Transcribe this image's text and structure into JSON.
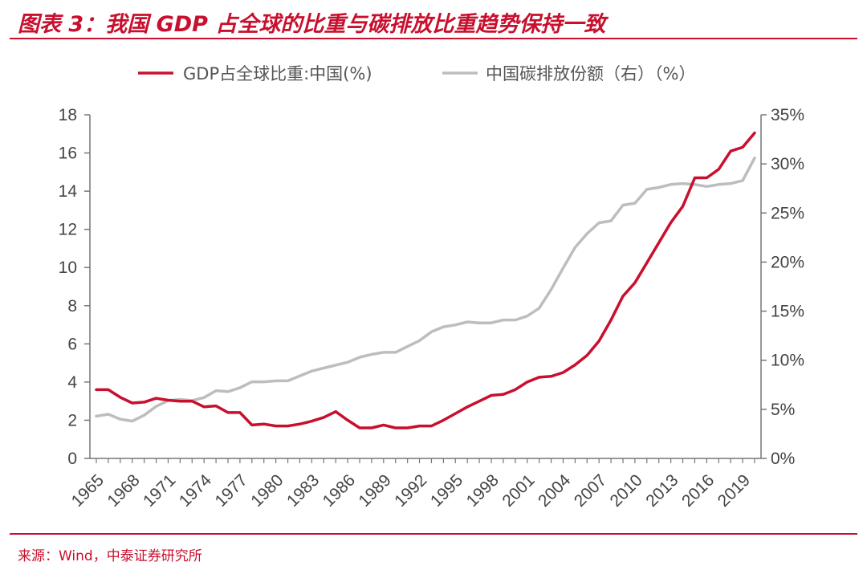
{
  "title": "图表 3：我国 GDP 占全球的比重与碳排放比重趋势保持一致",
  "source": "来源：Wind，中泰证券研究所",
  "colors": {
    "accent": "#C8102E",
    "gdp_line": "#C8102E",
    "carbon_line": "#BDBDBD"
  },
  "chart_data": {
    "type": "line",
    "legend_position": "top",
    "grid": false,
    "x": [
      1965,
      1966,
      1967,
      1968,
      1969,
      1970,
      1971,
      1972,
      1973,
      1974,
      1975,
      1976,
      1977,
      1978,
      1979,
      1980,
      1981,
      1982,
      1983,
      1984,
      1985,
      1986,
      1987,
      1988,
      1989,
      1990,
      1991,
      1992,
      1993,
      1994,
      1995,
      1996,
      1997,
      1998,
      1999,
      2000,
      2001,
      2002,
      2003,
      2004,
      2005,
      2006,
      2007,
      2008,
      2009,
      2010,
      2011,
      2012,
      2013,
      2014,
      2015,
      2016,
      2017,
      2018,
      2019,
      2020
    ],
    "x_tick_labels": [
      "1965",
      "1968",
      "1971",
      "1974",
      "1977",
      "1980",
      "1983",
      "1986",
      "1989",
      "1992",
      "1995",
      "1998",
      "2001",
      "2004",
      "2007",
      "2010",
      "2013",
      "2016",
      "2019"
    ],
    "y_left": {
      "range": [
        0,
        18
      ],
      "ticks": [
        "0",
        "2",
        "4",
        "6",
        "8",
        "10",
        "12",
        "14",
        "16",
        "18"
      ]
    },
    "y_right": {
      "range": [
        0,
        35
      ],
      "ticks": [
        "0%",
        "5%",
        "10%",
        "15%",
        "20%",
        "25%",
        "30%",
        "35%"
      ]
    },
    "series": [
      {
        "name": "GDP占全球比重:中国(%)",
        "axis": "left",
        "values": [
          3.6,
          3.6,
          3.2,
          2.9,
          2.95,
          3.15,
          3.05,
          3.0,
          3.0,
          2.7,
          2.75,
          2.4,
          2.4,
          1.75,
          1.8,
          1.7,
          1.7,
          1.8,
          1.95,
          2.15,
          2.45,
          2.0,
          1.6,
          1.6,
          1.75,
          1.6,
          1.6,
          1.7,
          1.7,
          2.0,
          2.35,
          2.7,
          3.0,
          3.3,
          3.35,
          3.6,
          4.0,
          4.25,
          4.3,
          4.5,
          4.9,
          5.4,
          6.15,
          7.25,
          8.5,
          9.2,
          10.25,
          11.3,
          12.35,
          13.2,
          14.7,
          14.7,
          15.15,
          16.1,
          16.3,
          17.05
        ]
      },
      {
        "name": "中国碳排放份额（右）（%）",
        "axis": "right",
        "values": [
          4.3,
          4.5,
          4.0,
          3.8,
          4.4,
          5.3,
          5.9,
          6.0,
          5.9,
          6.2,
          6.9,
          6.8,
          7.2,
          7.8,
          7.8,
          7.9,
          7.9,
          8.4,
          8.9,
          9.2,
          9.5,
          9.8,
          10.3,
          10.6,
          10.8,
          10.8,
          11.4,
          12.0,
          12.9,
          13.4,
          13.6,
          13.9,
          13.8,
          13.8,
          14.1,
          14.1,
          14.5,
          15.3,
          17.2,
          19.4,
          21.5,
          22.9,
          24.0,
          24.2,
          25.8,
          26.0,
          27.4,
          27.6,
          27.9,
          28.0,
          27.9,
          27.7,
          27.9,
          28.0,
          28.3,
          30.6
        ]
      }
    ]
  }
}
